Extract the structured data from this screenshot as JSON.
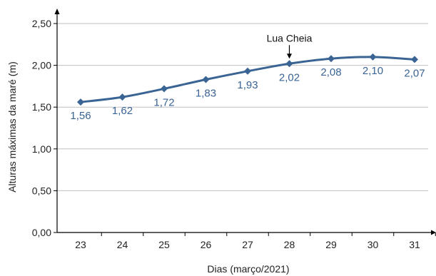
{
  "chart_data": {
    "type": "line",
    "xlabel": "Dias (março/2021)",
    "ylabel": "Alturas  máximas da maré (m)",
    "categories": [
      "23",
      "24",
      "25",
      "26",
      "27",
      "28",
      "29",
      "30",
      "31"
    ],
    "series": [
      {
        "values": [
          1.56,
          1.62,
          1.72,
          1.83,
          1.93,
          2.02,
          2.08,
          2.1,
          2.07
        ],
        "labels": [
          "1,56",
          "1,62",
          "1,72",
          "1,83",
          "1,93",
          "2,02",
          "2,08",
          "2,10",
          "2,07"
        ]
      }
    ],
    "ylim": [
      0,
      2.5
    ],
    "yticks": [
      0,
      0.5,
      1,
      1.5,
      2,
      2.5
    ],
    "ytick_labels": [
      "0,00",
      "0,50",
      "1,00",
      "1,50",
      "2,00",
      "2,50"
    ],
    "grid": "horizontal",
    "annotation": {
      "text": "Lua Cheia",
      "category": "28"
    },
    "colors": {
      "series": "#3a6494",
      "label": "#3a6494",
      "grid": "#bfbfbf",
      "axis": "#000000"
    }
  }
}
